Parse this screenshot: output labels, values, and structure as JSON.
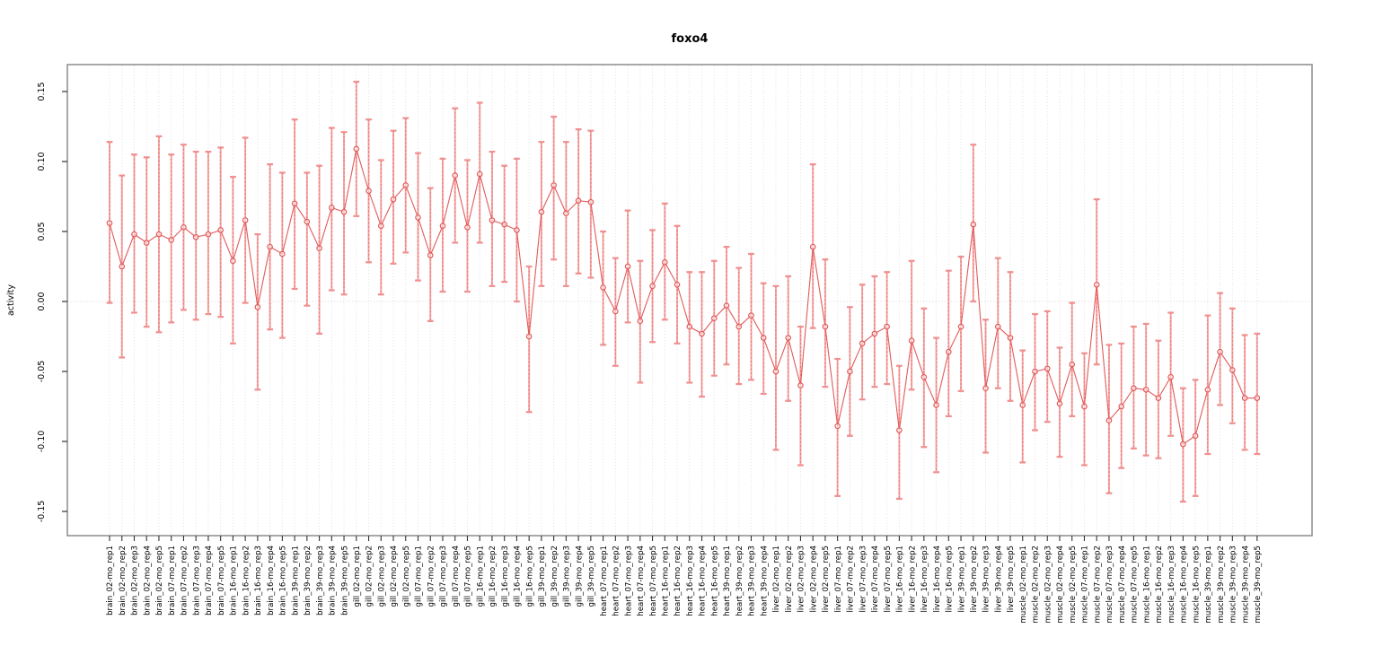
{
  "chart_data": {
    "type": "line",
    "subtype": "points-with-error-bars",
    "title": "foxo4",
    "xlabel": "",
    "ylabel": "activity",
    "ylim": [
      -0.17,
      0.17
    ],
    "yticks": [
      0.15,
      0.1,
      0.05,
      0.0,
      -0.05,
      -0.1,
      -0.15
    ],
    "ytick_labels": [
      "0.15",
      "0.10",
      "0.05",
      "0.00",
      "-0.05",
      "-0.10",
      "-0.15"
    ],
    "grid": "vertical-dotted-per-category-plus-zero-line",
    "legend_position": "none",
    "colors": {
      "marker_line": "#e25a5a",
      "error_bar_fill": "#f5a6a6",
      "error_bar_dash": "#e4716f",
      "error_cap": "#f08f8f",
      "gridline": "#dedede",
      "zero_line": "#d8d8d8",
      "box": "#8c8c8c",
      "tick": "#333333",
      "title": "#000000"
    },
    "categories": [
      "brain_02-mo_rep1",
      "brain_02-mo_rep2",
      "brain_02-mo_rep3",
      "brain_02-mo_rep4",
      "brain_02-mo_rep5",
      "brain_07-mo_rep1",
      "brain_07-mo_rep2",
      "brain_07-mo_rep3",
      "brain_07-mo_rep4",
      "brain_07-mo_rep5",
      "brain_16-mo_rep1",
      "brain_16-mo_rep2",
      "brain_16-mo_rep3",
      "brain_16-mo_rep4",
      "brain_16-mo_rep5",
      "brain_39-mo_rep1",
      "brain_39-mo_rep2",
      "brain_39-mo_rep3",
      "brain_39-mo_rep4",
      "brain_39-mo_rep5",
      "gill_02-mo_rep1",
      "gill_02-mo_rep2",
      "gill_02-mo_rep3",
      "gill_02-mo_rep4",
      "gill_02-mo_rep5",
      "gill_07-mo_rep1",
      "gill_07-mo_rep2",
      "gill_07-mo_rep3",
      "gill_07-mo_rep4",
      "gill_07-mo_rep5",
      "gill_16-mo_rep1",
      "gill_16-mo_rep2",
      "gill_16-mo_rep3",
      "gill_16-mo_rep4",
      "gill_16-mo_rep5",
      "gill_39-mo_rep1",
      "gill_39-mo_rep2",
      "gill_39-mo_rep3",
      "gill_39-mo_rep4",
      "gill_39-mo_rep5",
      "heart_07-mo_rep1",
      "heart_07-mo_rep2",
      "heart_07-mo_rep3",
      "heart_07-mo_rep4",
      "heart_07-mo_rep5",
      "heart_16-mo_rep1",
      "heart_16-mo_rep2",
      "heart_16-mo_rep3",
      "heart_16-mo_rep4",
      "heart_16-mo_rep5",
      "heart_39-mo_rep1",
      "heart_39-mo_rep2",
      "heart_39-mo_rep3",
      "heart_39-mo_rep4",
      "liver_02-mo_rep1",
      "liver_02-mo_rep2",
      "liver_02-mo_rep3",
      "liver_02-mo_rep4",
      "liver_02-mo_rep5",
      "liver_07-mo_rep1",
      "liver_07-mo_rep2",
      "liver_07-mo_rep3",
      "liver_07-mo_rep4",
      "liver_07-mo_rep5",
      "liver_16-mo_rep1",
      "liver_16-mo_rep2",
      "liver_16-mo_rep3",
      "liver_16-mo_rep4",
      "liver_16-mo_rep5",
      "liver_39-mo_rep1",
      "liver_39-mo_rep2",
      "liver_39-mo_rep3",
      "liver_39-mo_rep4",
      "liver_39-mo_rep5",
      "muscle_02-mo_rep1",
      "muscle_02-mo_rep2",
      "muscle_02-mo_rep3",
      "muscle_02-mo_rep4",
      "muscle_02-mo_rep5",
      "muscle_07-mo_rep1",
      "muscle_07-mo_rep2",
      "muscle_07-mo_rep3",
      "muscle_07-mo_rep4",
      "muscle_07-mo_rep5",
      "muscle_16-mo_rep1",
      "muscle_16-mo_rep2",
      "muscle_16-mo_rep3",
      "muscle_16-mo_rep4",
      "muscle_16-mo_rep5",
      "muscle_39-mo_rep1",
      "muscle_39-mo_rep2",
      "muscle_39-mo_rep3",
      "muscle_39-mo_rep4",
      "muscle_39-mo_rep5"
    ],
    "values": [
      0.056,
      0.025,
      0.048,
      0.042,
      0.048,
      0.044,
      0.053,
      0.046,
      0.048,
      0.051,
      0.029,
      0.058,
      -0.004,
      0.039,
      0.034,
      0.07,
      0.057,
      0.038,
      0.067,
      0.064,
      0.109,
      0.079,
      0.054,
      0.073,
      0.083,
      0.06,
      0.033,
      0.054,
      0.09,
      0.053,
      0.091,
      0.058,
      0.055,
      0.051,
      -0.025,
      0.064,
      0.083,
      0.063,
      0.072,
      0.071,
      0.01,
      -0.007,
      0.025,
      -0.014,
      0.011,
      0.028,
      0.012,
      -0.018,
      -0.023,
      -0.012,
      -0.003,
      -0.018,
      -0.01,
      -0.026,
      -0.05,
      -0.026,
      -0.06,
      0.039,
      -0.018,
      -0.089,
      -0.05,
      -0.03,
      -0.023,
      -0.018,
      -0.092,
      -0.028,
      -0.054,
      -0.074,
      -0.036,
      -0.018,
      0.055,
      -0.062,
      -0.018,
      -0.026,
      -0.074,
      -0.05,
      -0.048,
      -0.073,
      -0.045,
      -0.075,
      0.012,
      -0.085,
      -0.075,
      -0.062,
      -0.063,
      -0.069,
      -0.054,
      -0.102,
      -0.096,
      -0.063,
      -0.036,
      -0.049,
      -0.069,
      -0.069
    ],
    "upper": [
      0.114,
      0.09,
      0.105,
      0.103,
      0.118,
      0.105,
      0.112,
      0.107,
      0.107,
      0.11,
      0.089,
      0.117,
      0.048,
      0.098,
      0.092,
      0.13,
      0.092,
      0.097,
      0.124,
      0.121,
      0.157,
      0.13,
      0.101,
      0.122,
      0.131,
      0.106,
      0.081,
      0.102,
      0.138,
      0.101,
      0.142,
      0.107,
      0.097,
      0.102,
      0.025,
      0.114,
      0.132,
      0.114,
      0.123,
      0.122,
      0.05,
      0.031,
      0.065,
      0.029,
      0.051,
      0.07,
      0.054,
      0.021,
      0.021,
      0.029,
      0.039,
      0.024,
      0.034,
      0.013,
      0.011,
      0.018,
      -0.018,
      0.098,
      0.03,
      -0.041,
      -0.004,
      0.012,
      0.018,
      0.021,
      -0.046,
      0.029,
      -0.005,
      -0.026,
      0.022,
      0.032,
      0.112,
      -0.013,
      0.031,
      0.021,
      -0.035,
      -0.009,
      -0.007,
      -0.033,
      -0.001,
      -0.037,
      0.073,
      -0.031,
      -0.03,
      -0.018,
      -0.016,
      -0.028,
      -0.008,
      -0.062,
      -0.056,
      -0.01,
      0.006,
      -0.005,
      -0.024,
      -0.023
    ],
    "lower": [
      -0.001,
      -0.04,
      -0.008,
      -0.018,
      -0.022,
      -0.015,
      -0.006,
      -0.013,
      -0.009,
      -0.011,
      -0.03,
      -0.001,
      -0.063,
      -0.02,
      -0.026,
      0.009,
      -0.003,
      -0.023,
      0.008,
      0.005,
      0.061,
      0.028,
      0.005,
      0.027,
      0.035,
      0.015,
      -0.014,
      0.007,
      0.042,
      0.007,
      0.042,
      0.011,
      0.014,
      0.0,
      -0.079,
      0.011,
      0.03,
      0.011,
      0.02,
      0.017,
      -0.031,
      -0.046,
      -0.015,
      -0.058,
      -0.029,
      -0.013,
      -0.03,
      -0.058,
      -0.068,
      -0.053,
      -0.045,
      -0.059,
      -0.056,
      -0.066,
      -0.106,
      -0.071,
      -0.117,
      -0.019,
      -0.061,
      -0.139,
      -0.096,
      -0.07,
      -0.061,
      -0.059,
      -0.141,
      -0.063,
      -0.104,
      -0.122,
      -0.082,
      -0.064,
      0.0,
      -0.108,
      -0.062,
      -0.071,
      -0.115,
      -0.092,
      -0.086,
      -0.111,
      -0.082,
      -0.117,
      -0.045,
      -0.137,
      -0.119,
      -0.105,
      -0.11,
      -0.112,
      -0.096,
      -0.143,
      -0.139,
      -0.109,
      -0.074,
      -0.087,
      -0.106,
      -0.109
    ]
  }
}
